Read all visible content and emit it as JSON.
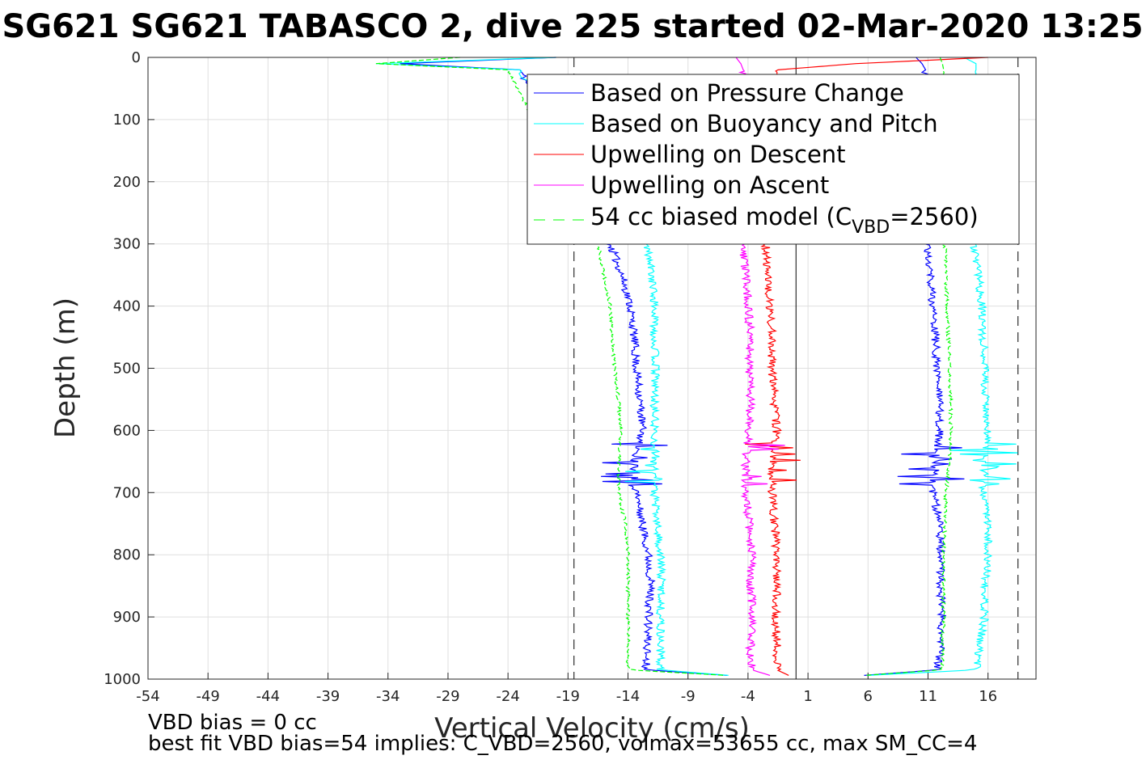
{
  "chart_data": {
    "type": "line",
    "title": "SG621 SG621 TABASCO 2, dive 225 started 02-Mar-2020 13:25",
    "xlabel": "Vertical Velocity (cm/s)",
    "ylabel": "Depth (m)",
    "xlim": [
      -54,
      20
    ],
    "ylim": [
      1000,
      0
    ],
    "y_reversed": true,
    "grid": true,
    "xticks": [
      "-54",
      "-49",
      "-44",
      "-39",
      "-34",
      "-29",
      "-24",
      "-19",
      "-14",
      "-9",
      "-4",
      "1",
      "6",
      "11",
      "16"
    ],
    "yticks": [
      "0",
      "100",
      "200",
      "300",
      "400",
      "500",
      "600",
      "700",
      "800",
      "900",
      "1000"
    ],
    "legend_position": "top-right",
    "legend": [
      "Based on Pressure Change",
      "Based on Buoyancy and Pitch",
      "Upwelling on Descent",
      "Upwelling on Ascent",
      "54 cc biased model (C",
      "VBD",
      "=2560)"
    ],
    "reference_lines": {
      "solid_x": 0,
      "dashed_x": [
        -18.5,
        18.5
      ]
    },
    "series": [
      {
        "name": "Based on Pressure Change",
        "color": "#0000ff",
        "style": "solid",
        "descent_depth": [
          0,
          10,
          20,
          300,
          350,
          400,
          450,
          500,
          550,
          600,
          650,
          700,
          750,
          800,
          850,
          900,
          950,
          985,
          995
        ],
        "descent_v": [
          -20,
          -33,
          -23,
          -15.5,
          -14.5,
          -13.8,
          -13.5,
          -13.3,
          -13.0,
          -12.8,
          -13.5,
          -13.3,
          -12.8,
          -12.3,
          -12.1,
          -12.3,
          -12.4,
          -12.5,
          -5
        ],
        "ascent_depth": [
          0,
          10,
          20,
          300,
          350,
          400,
          450,
          500,
          550,
          600,
          650,
          700,
          750,
          800,
          850,
          900,
          950,
          985,
          995
        ],
        "ascent_v": [
          10,
          10.5,
          10.8,
          11.0,
          11.2,
          11.4,
          11.6,
          11.8,
          11.9,
          12.0,
          11.6,
          11.4,
          12.0,
          12.1,
          12.0,
          12.2,
          12.0,
          11.8,
          5
        ]
      },
      {
        "name": "Based on Buoyancy and Pitch",
        "color": "#00ffff",
        "style": "solid",
        "descent_depth": [
          0,
          10,
          20,
          300,
          350,
          400,
          450,
          500,
          550,
          600,
          650,
          700,
          750,
          800,
          850,
          900,
          950,
          985,
          995
        ],
        "descent_v": [
          -20,
          -35,
          -23,
          -12.5,
          -12.0,
          -11.8,
          -11.8,
          -11.7,
          -11.8,
          -11.8,
          -11.7,
          -11.8,
          -11.6,
          -11.3,
          -11.2,
          -11.3,
          -11.3,
          -11.3,
          -5
        ],
        "ascent_depth": [
          0,
          10,
          20,
          300,
          350,
          400,
          450,
          500,
          550,
          600,
          650,
          700,
          750,
          800,
          850,
          900,
          950,
          985,
          995
        ],
        "ascent_v": [
          14,
          15,
          15,
          14.8,
          15.2,
          15.5,
          15.6,
          15.7,
          15.8,
          15.9,
          15.8,
          15.6,
          16.0,
          16.0,
          15.8,
          15.7,
          15.3,
          15.1,
          5
        ]
      },
      {
        "name": "Upwelling on Descent",
        "color": "#ff0000",
        "style": "solid",
        "descent_depth": [
          0,
          10,
          20,
          300,
          350,
          400,
          450,
          500,
          550,
          600,
          650,
          700,
          750,
          800,
          850,
          900,
          950,
          985,
          995
        ],
        "descent_v": [
          16,
          5,
          -1.5,
          -2.5,
          -2.4,
          -2.2,
          -2.0,
          -2.0,
          -1.8,
          -1.6,
          -2.0,
          -2.0,
          -1.8,
          -1.6,
          -1.6,
          -1.7,
          -1.6,
          -1.6,
          -0.5
        ]
      },
      {
        "name": "Upwelling on Ascent",
        "color": "#ff00ff",
        "style": "solid",
        "ascent_depth": [
          0,
          10,
          20,
          300,
          350,
          400,
          450,
          500,
          550,
          600,
          650,
          700,
          750,
          800,
          850,
          900,
          950,
          985,
          995
        ],
        "ascent_v": [
          -5,
          -4.6,
          -4.4,
          -4.5,
          -4.2,
          -4.0,
          -3.8,
          -3.9,
          -3.8,
          -3.9,
          -4.2,
          -4.2,
          -3.9,
          -3.7,
          -3.8,
          -3.6,
          -3.8,
          -3.7,
          -2
        ]
      },
      {
        "name": "54 cc biased model (C_VBD=2560)",
        "color": "#00ff00",
        "style": "dashed",
        "descent_depth": [
          0,
          10,
          20,
          300,
          350,
          400,
          450,
          500,
          550,
          600,
          650,
          700,
          750,
          800,
          850,
          900,
          950,
          985,
          995
        ],
        "descent_v": [
          -28,
          -35,
          -24,
          -16.5,
          -16.0,
          -15.5,
          -15.3,
          -15.1,
          -14.8,
          -14.6,
          -14.8,
          -14.8,
          -14.2,
          -14.0,
          -14.0,
          -14.0,
          -14.0,
          -14.0,
          -5
        ],
        "ascent_depth": [
          0,
          10,
          20,
          300,
          350,
          400,
          450,
          500,
          550,
          600,
          650,
          700,
          750,
          800,
          850,
          900,
          950,
          985,
          995
        ],
        "ascent_v": [
          12,
          12.2,
          12.3,
          12.4,
          12.5,
          12.6,
          12.7,
          12.8,
          12.9,
          12.9,
          12.8,
          12.5,
          12.4,
          12.3,
          12.3,
          12.3,
          12.2,
          12.2,
          5
        ]
      }
    ]
  },
  "notes": {
    "vbd_bias": "VBD bias = 0 cc",
    "best_fit": "best fit VBD bias=54 implies: C_VBD=2560, volmax=53655 cc, max SM_CC=4"
  }
}
